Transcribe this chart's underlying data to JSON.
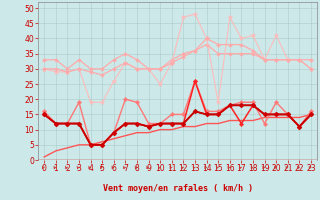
{
  "x": [
    0,
    1,
    2,
    3,
    4,
    5,
    6,
    7,
    8,
    9,
    10,
    11,
    12,
    13,
    14,
    15,
    16,
    17,
    18,
    19,
    20,
    21,
    22,
    23
  ],
  "background_color": "#cce8e8",
  "grid_color": "#aacccc",
  "xlabel": "Vent moyen/en rafales ( km/h )",
  "ylim": [
    0,
    52
  ],
  "xlim": [
    -0.5,
    23.5
  ],
  "yticks": [
    0,
    5,
    10,
    15,
    20,
    25,
    30,
    35,
    40,
    45,
    50
  ],
  "xticks": [
    0,
    1,
    2,
    3,
    4,
    5,
    6,
    7,
    8,
    9,
    10,
    11,
    12,
    13,
    14,
    15,
    16,
    17,
    18,
    19,
    20,
    21,
    22,
    23
  ],
  "lines": [
    {
      "y": [
        33,
        33,
        30,
        33,
        30,
        30,
        33,
        35,
        33,
        30,
        30,
        33,
        35,
        36,
        38,
        35,
        35,
        35,
        35,
        33,
        33,
        33,
        33,
        33
      ],
      "color": "#ffaaaa",
      "lw": 0.9,
      "marker": "D",
      "ms": 2.0,
      "zorder": 2
    },
    {
      "y": [
        30,
        29,
        29,
        30,
        19,
        19,
        26,
        32,
        30,
        30,
        25,
        32,
        47,
        48,
        40,
        19,
        47,
        40,
        41,
        33,
        41,
        33,
        33,
        30
      ],
      "color": "#ffbbbb",
      "lw": 0.8,
      "marker": "*",
      "ms": 3.5,
      "zorder": 2
    },
    {
      "y": [
        30,
        30,
        29,
        30,
        29,
        28,
        30,
        32,
        30,
        30,
        30,
        32,
        34,
        36,
        40,
        38,
        38,
        38,
        36,
        33,
        33,
        33,
        33,
        30
      ],
      "color": "#ffaaaa",
      "lw": 0.9,
      "marker": "D",
      "ms": 2.0,
      "zorder": 2
    },
    {
      "y": [
        16,
        12,
        12,
        19,
        5,
        5,
        9,
        20,
        19,
        12,
        12,
        15,
        15,
        26,
        16,
        16,
        18,
        19,
        19,
        12,
        19,
        15,
        11,
        16
      ],
      "color": "#ff7777",
      "lw": 1.0,
      "marker": "D",
      "ms": 2.2,
      "zorder": 3
    },
    {
      "y": [
        15,
        12,
        12,
        12,
        5,
        5,
        9,
        12,
        12,
        11,
        12,
        12,
        12,
        26,
        15,
        15,
        18,
        12,
        18,
        15,
        15,
        15,
        11,
        15
      ],
      "color": "#ff2222",
      "lw": 1.1,
      "marker": "D",
      "ms": 2.2,
      "zorder": 4
    },
    {
      "y": [
        15,
        12,
        12,
        12,
        5,
        5,
        9,
        12,
        12,
        11,
        12,
        12,
        12,
        16,
        15,
        15,
        18,
        18,
        18,
        15,
        15,
        15,
        11,
        15
      ],
      "color": "#cc0000",
      "lw": 1.3,
      "marker": "D",
      "ms": 2.5,
      "zorder": 5
    },
    {
      "y": [
        15,
        12,
        12,
        12,
        5,
        5,
        9,
        12,
        12,
        11,
        12,
        12,
        12,
        16,
        15,
        15,
        18,
        18,
        18,
        15,
        15,
        15,
        11,
        15
      ],
      "color": "#880000",
      "lw": 1.0,
      "marker": "D",
      "ms": 2.0,
      "zorder": 3
    },
    {
      "y": [
        1,
        3,
        4,
        5,
        5,
        6,
        7,
        8,
        9,
        9,
        10,
        10,
        11,
        11,
        12,
        12,
        13,
        13,
        13,
        14,
        14,
        14,
        14,
        15
      ],
      "color": "#ff5555",
      "lw": 1.0,
      "marker": null,
      "ms": 0,
      "zorder": 2
    }
  ],
  "arrow_color": "#cc3333",
  "xlabel_fontsize": 6,
  "tick_fontsize": 5.5,
  "tick_color": "#cc0000",
  "label_color": "#cc0000"
}
